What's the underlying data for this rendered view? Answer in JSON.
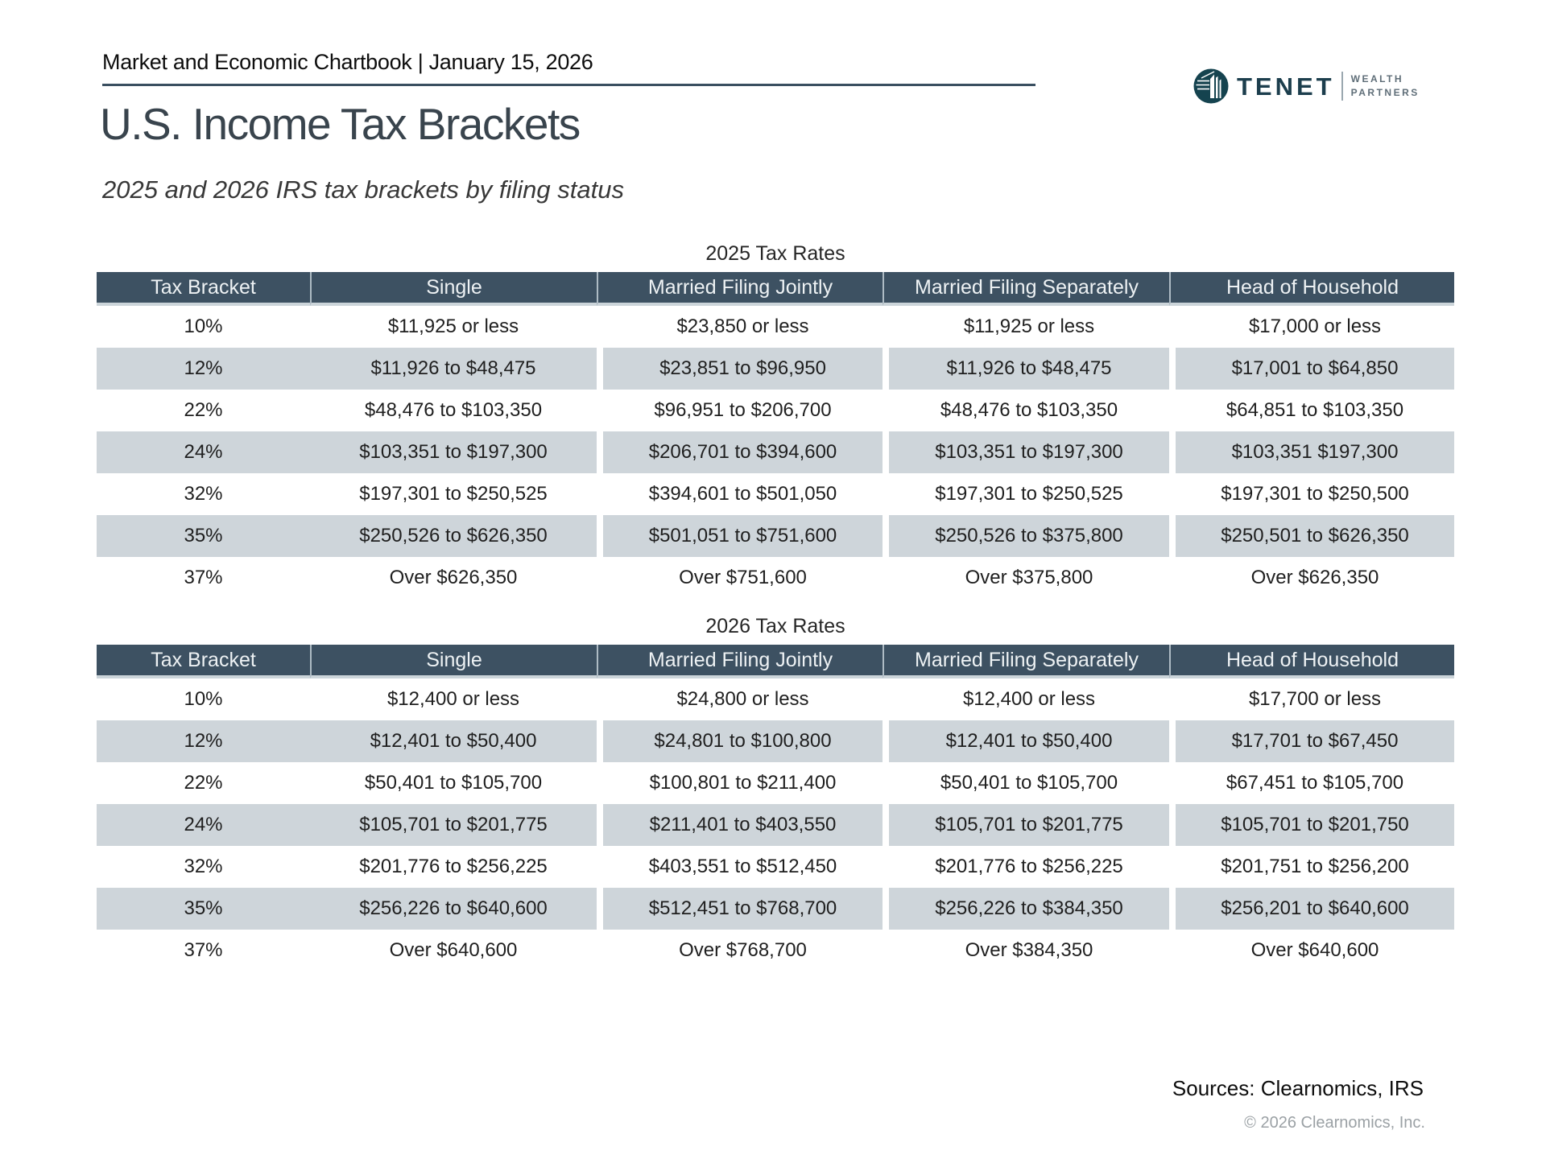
{
  "header": {
    "chartbook": "Market and Economic Chartbook | January 15, 2026",
    "logo": {
      "name": "TENET",
      "line1": "WEALTH",
      "line2": "PARTNERS"
    }
  },
  "title": "U.S. Income Tax Brackets",
  "subtitle": "2025 and 2026 IRS tax brackets by filing status",
  "colors": {
    "header_bg": "#3d5162",
    "row_shade": "#ced5da",
    "rule": "#3a4f60",
    "logo_teal": "#15434f"
  },
  "tables": [
    {
      "title": "2025 Tax Rates",
      "columns": [
        "Tax Bracket",
        "Single",
        "Married Filing Jointly",
        "Married Filing Separately",
        "Head of Household"
      ],
      "rows": [
        [
          "10%",
          "$11,925 or less",
          "$23,850 or less",
          "$11,925 or less",
          "$17,000 or less"
        ],
        [
          "12%",
          "$11,926 to $48,475",
          "$23,851 to $96,950",
          "$11,926 to $48,475",
          "$17,001 to $64,850"
        ],
        [
          "22%",
          "$48,476 to $103,350",
          "$96,951 to $206,700",
          "$48,476 to $103,350",
          "$64,851 to $103,350"
        ],
        [
          "24%",
          "$103,351 to $197,300",
          "$206,701 to $394,600",
          "$103,351 to $197,300",
          "$103,351 $197,300"
        ],
        [
          "32%",
          "$197,301 to $250,525",
          "$394,601 to $501,050",
          "$197,301 to $250,525",
          "$197,301 to $250,500"
        ],
        [
          "35%",
          "$250,526 to $626,350",
          "$501,051 to $751,600",
          "$250,526 to $375,800",
          "$250,501 to $626,350"
        ],
        [
          "37%",
          "Over $626,350",
          "Over $751,600",
          "Over $375,800",
          "Over $626,350"
        ]
      ]
    },
    {
      "title": "2026 Tax Rates",
      "columns": [
        "Tax Bracket",
        "Single",
        "Married Filing Jointly",
        "Married Filing Separately",
        "Head of Household"
      ],
      "rows": [
        [
          "10%",
          "$12,400 or less",
          "$24,800 or less",
          "$12,400 or less",
          "$17,700 or less"
        ],
        [
          "12%",
          "$12,401 to $50,400",
          "$24,801 to $100,800",
          "$12,401 to $50,400",
          "$17,701 to $67,450"
        ],
        [
          "22%",
          "$50,401 to $105,700",
          "$100,801 to $211,400",
          "$50,401 to $105,700",
          "$67,451 to $105,700"
        ],
        [
          "24%",
          "$105,701 to $201,775",
          "$211,401 to $403,550",
          "$105,701 to $201,775",
          "$105,701 to $201,750"
        ],
        [
          "32%",
          "$201,776 to $256,225",
          "$403,551 to $512,450",
          "$201,776 to $256,225",
          "$201,751 to $256,200"
        ],
        [
          "35%",
          "$256,226 to $640,600",
          "$512,451 to $768,700",
          "$256,226 to $384,350",
          "$256,201 to $640,600"
        ],
        [
          "37%",
          "Over $640,600",
          "Over $768,700",
          "Over $384,350",
          "Over $640,600"
        ]
      ]
    }
  ],
  "footer": {
    "sources": "Sources: Clearnomics, IRS",
    "copyright": "© 2026 Clearnomics, Inc."
  }
}
